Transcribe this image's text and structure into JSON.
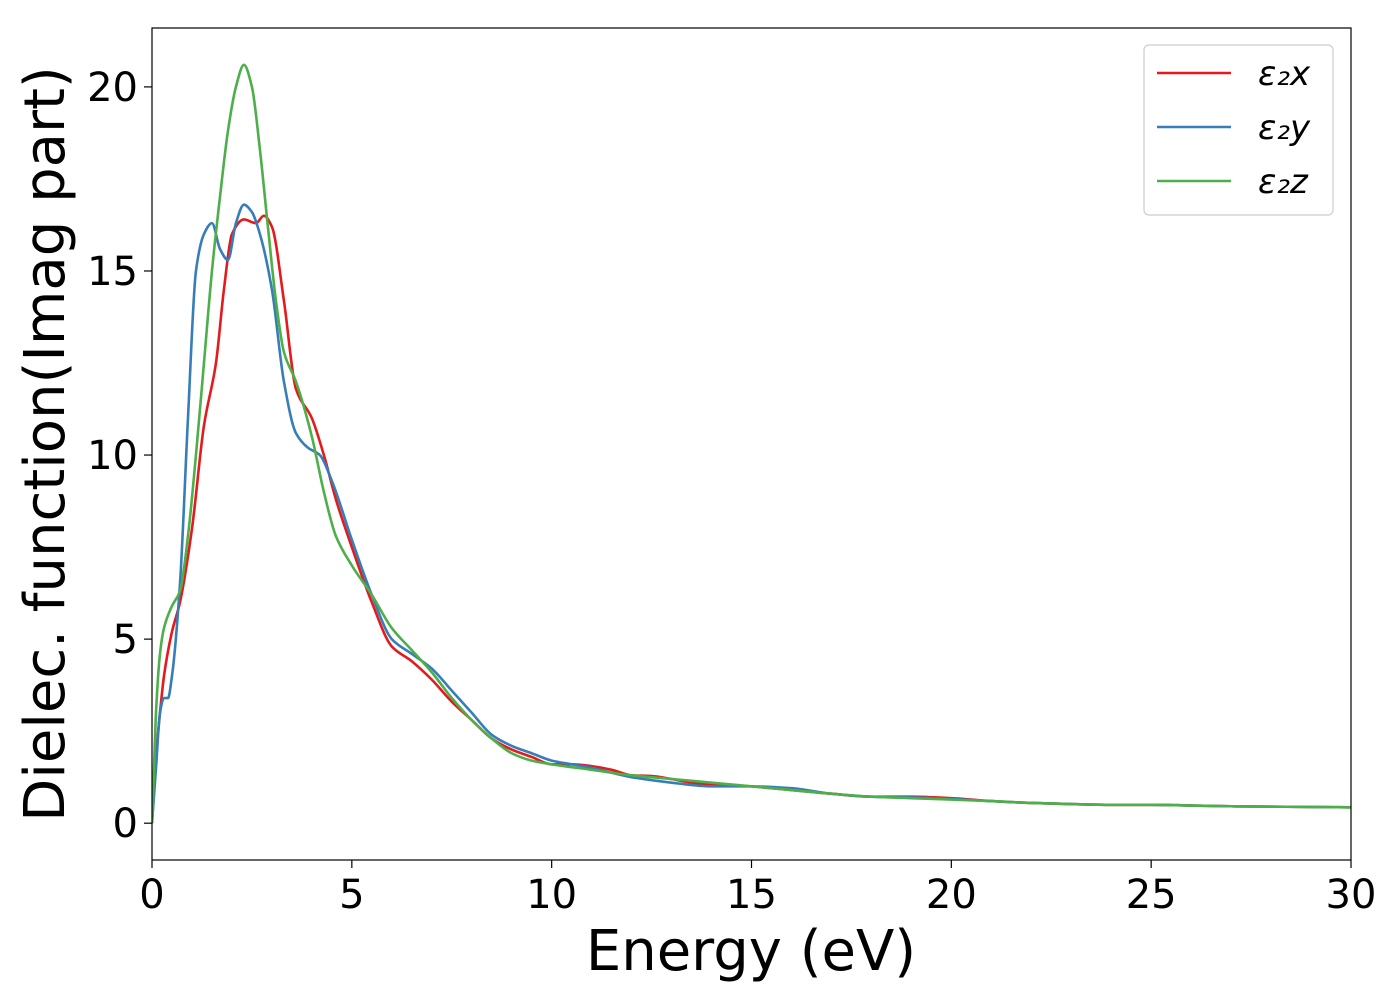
{
  "chart_data": {
    "type": "line",
    "xlabel": "Energy (eV)",
    "ylabel": "Dielec. function(Imag part)",
    "xlim": [
      0,
      30
    ],
    "ylim": [
      -1,
      21.6
    ],
    "xticks": [
      0,
      5,
      10,
      15,
      20,
      25,
      30
    ],
    "yticks": [
      0,
      5,
      10,
      15,
      20
    ],
    "grid": false,
    "legend_position": "top-right",
    "series": [
      {
        "name": "ε₂x",
        "color": "#e41a1c",
        "x": [
          0,
          0.1,
          0.2,
          0.3,
          0.5,
          0.7,
          1.0,
          1.3,
          1.6,
          1.8,
          2.0,
          2.3,
          2.6,
          2.8,
          3.0,
          3.3,
          3.6,
          4.0,
          4.3,
          4.6,
          5.0,
          5.5,
          6.0,
          6.5,
          7.0,
          7.5,
          8.0,
          8.5,
          9.0,
          9.5,
          10.0,
          10.5,
          11.0,
          11.5,
          12.0,
          12.5,
          13.0,
          13.5,
          14.0,
          15.0,
          15.5,
          16.0,
          17.0,
          18.0,
          19.0,
          20.0,
          21.0,
          22.0,
          23.0,
          24.0,
          25.0,
          26.0,
          27.0,
          28.0,
          29.0,
          30.0
        ],
        "y": [
          0,
          1.8,
          3.0,
          4.0,
          5.2,
          6.0,
          8.0,
          10.8,
          12.5,
          14.5,
          16.0,
          16.4,
          16.3,
          16.5,
          16.2,
          14.2,
          11.8,
          11.0,
          10.0,
          8.8,
          7.5,
          6.0,
          4.8,
          4.4,
          3.9,
          3.3,
          2.8,
          2.3,
          2.0,
          1.8,
          1.6,
          1.6,
          1.55,
          1.45,
          1.3,
          1.28,
          1.2,
          1.1,
          1.05,
          1.0,
          0.95,
          0.9,
          0.8,
          0.72,
          0.72,
          0.68,
          0.6,
          0.55,
          0.52,
          0.5,
          0.5,
          0.48,
          0.46,
          0.45,
          0.44,
          0.43
        ]
      },
      {
        "name": "ε₂y",
        "color": "#377eb8",
        "x": [
          0,
          0.1,
          0.2,
          0.3,
          0.4,
          0.5,
          0.7,
          0.9,
          1.1,
          1.3,
          1.5,
          1.7,
          1.9,
          2.1,
          2.3,
          2.5,
          2.7,
          3.0,
          3.3,
          3.6,
          3.9,
          4.2,
          4.5,
          5.0,
          5.5,
          6.0,
          6.5,
          7.0,
          7.5,
          8.0,
          8.5,
          9.0,
          9.5,
          10.0,
          10.5,
          11.0,
          12.0,
          13.0,
          14.0,
          15.0,
          16.0,
          17.0,
          18.0,
          19.0,
          20.0,
          21.0,
          22.0,
          23.0,
          24.0,
          25.0,
          26.0,
          27.0,
          28.0,
          29.0,
          30.0
        ],
        "y": [
          0,
          1.5,
          3.0,
          3.4,
          3.4,
          4.0,
          6.5,
          11.0,
          15.0,
          16.0,
          16.3,
          15.6,
          15.3,
          16.3,
          16.8,
          16.6,
          16.0,
          14.5,
          12.0,
          10.6,
          10.2,
          10.0,
          9.3,
          7.7,
          6.2,
          5.0,
          4.6,
          4.2,
          3.6,
          3.0,
          2.4,
          2.1,
          1.9,
          1.7,
          1.6,
          1.5,
          1.25,
          1.1,
          1.0,
          1.0,
          0.95,
          0.8,
          0.72,
          0.7,
          0.66,
          0.6,
          0.55,
          0.52,
          0.5,
          0.5,
          0.48,
          0.46,
          0.45,
          0.44,
          0.43
        ]
      },
      {
        "name": "ε₂z",
        "color": "#4daf4a",
        "x": [
          0,
          0.05,
          0.1,
          0.2,
          0.3,
          0.5,
          0.7,
          0.9,
          1.1,
          1.3,
          1.5,
          1.7,
          1.9,
          2.1,
          2.3,
          2.5,
          2.7,
          2.9,
          3.1,
          3.3,
          3.6,
          4.0,
          4.3,
          4.6,
          5.0,
          5.5,
          6.0,
          6.5,
          7.0,
          7.5,
          8.0,
          8.5,
          9.0,
          9.5,
          10.0,
          11.0,
          12.0,
          13.0,
          14.0,
          15.0,
          16.0,
          17.0,
          18.0,
          19.0,
          20.0,
          21.0,
          22.0,
          23.0,
          24.0,
          25.0,
          26.0,
          27.0,
          28.0,
          29.0,
          30.0
        ],
        "y": [
          0,
          1.5,
          3.0,
          4.6,
          5.3,
          5.9,
          6.3,
          7.8,
          10.0,
          12.5,
          15.0,
          17.0,
          18.8,
          20.0,
          20.6,
          20.0,
          18.3,
          16.2,
          14.2,
          12.8,
          12.0,
          10.5,
          9.0,
          7.8,
          7.0,
          6.2,
          5.3,
          4.7,
          4.1,
          3.4,
          2.8,
          2.3,
          1.9,
          1.7,
          1.6,
          1.45,
          1.3,
          1.2,
          1.1,
          1.0,
          0.9,
          0.8,
          0.72,
          0.68,
          0.64,
          0.6,
          0.55,
          0.52,
          0.5,
          0.5,
          0.48,
          0.46,
          0.45,
          0.44,
          0.43
        ]
      }
    ]
  }
}
